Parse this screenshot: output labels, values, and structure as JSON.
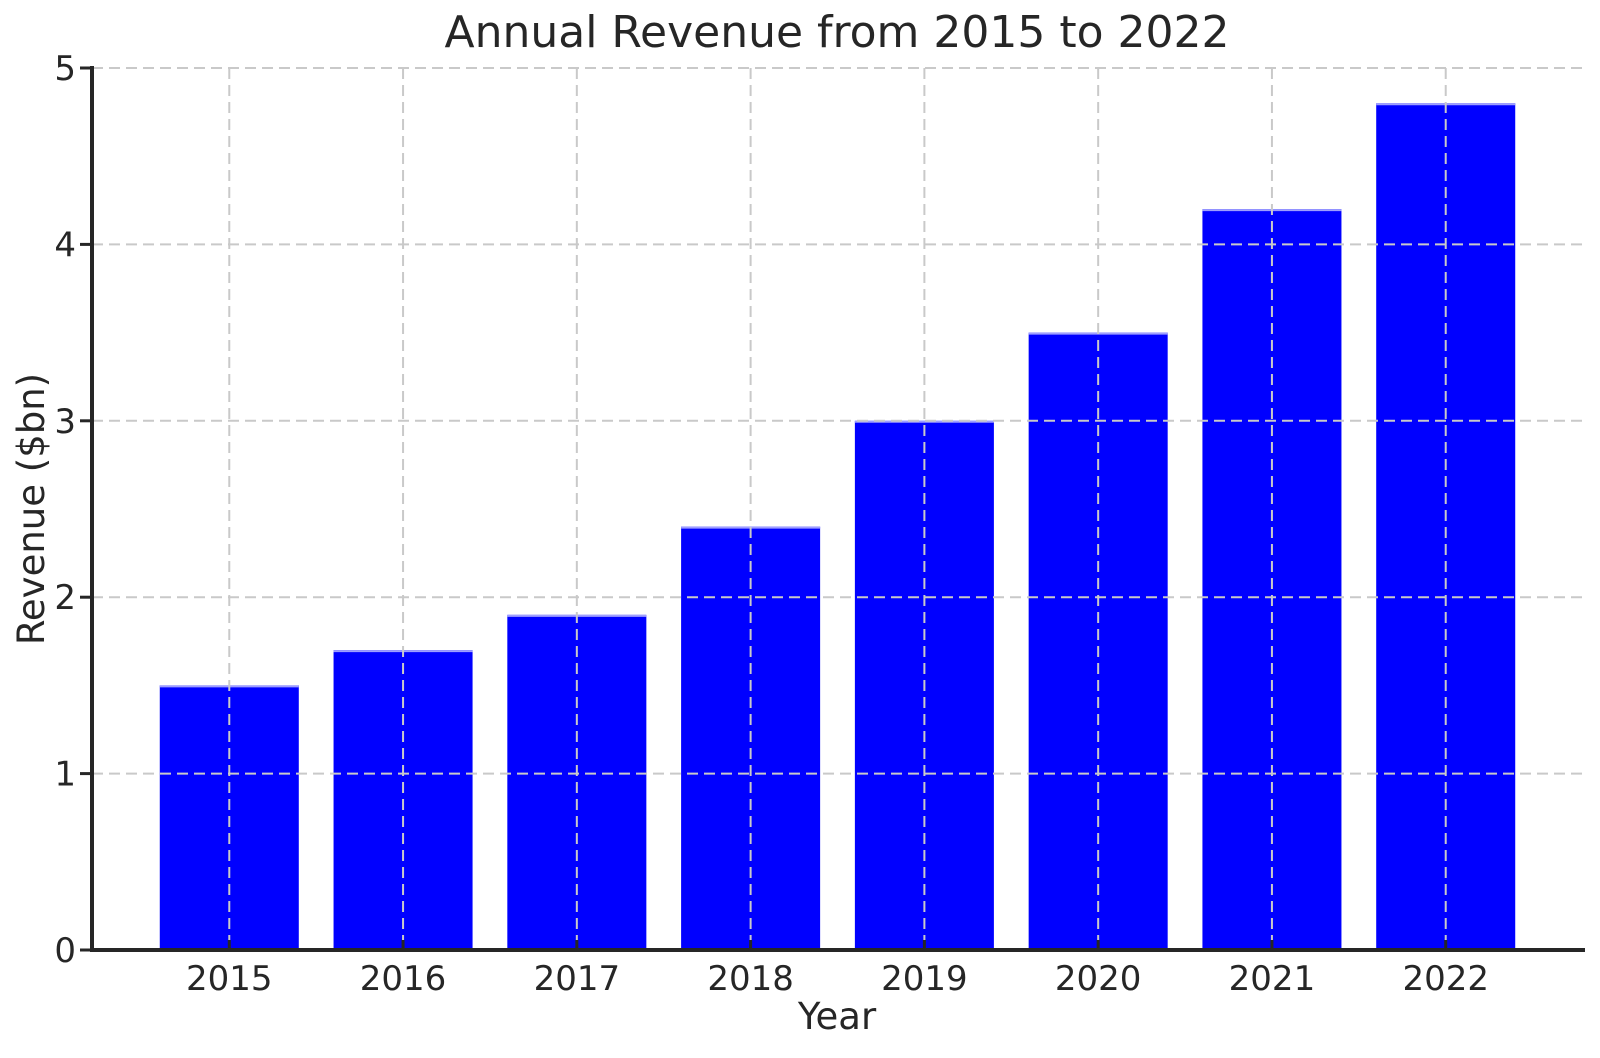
{
  "figure": {
    "background_color": "#ffffff"
  },
  "chart_data": {
    "type": "bar",
    "title": "Annual Revenue from 2015 to 2022",
    "xlabel": "Year",
    "ylabel": "Revenue ($bn)",
    "categories": [
      "2015",
      "2016",
      "2017",
      "2018",
      "2019",
      "2020",
      "2021",
      "2022"
    ],
    "values": [
      1.5,
      1.7,
      1.9,
      2.4,
      3.0,
      3.5,
      4.2,
      4.8
    ],
    "ylim": [
      0,
      5
    ],
    "yticks": [
      0,
      1,
      2,
      3,
      4,
      5
    ],
    "bar_color": "#0000ff",
    "bar_top_edge_color": "#9e9eff",
    "grid_color": "#c9c9c9",
    "grid_style": "dashed",
    "grid_above_bars": true,
    "axis_color": "#262626",
    "text_color": "#262626",
    "legend_position": "none"
  }
}
